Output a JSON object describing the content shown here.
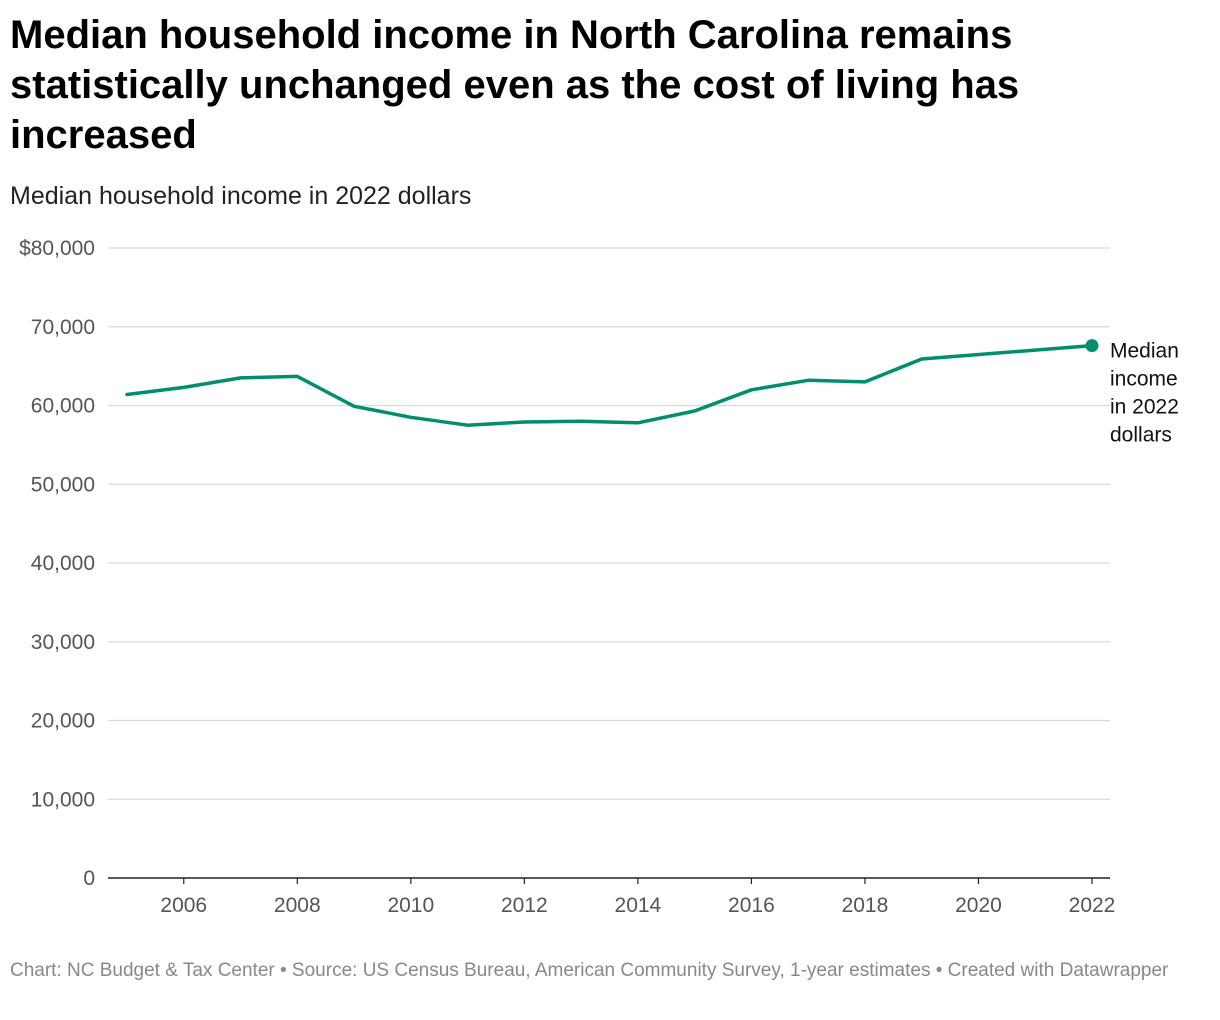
{
  "chart_data": {
    "type": "line",
    "title": "Median household income in North Carolina remains statistically unchanged even as the cost of living has increased",
    "subtitle": "Median household income in 2022 dollars",
    "xlabel": "",
    "ylabel": "",
    "x": [
      2005,
      2006,
      2007,
      2008,
      2009,
      2010,
      2011,
      2012,
      2013,
      2014,
      2015,
      2016,
      2017,
      2018,
      2019,
      2020,
      2021,
      2022
    ],
    "series": [
      {
        "name": "Median income in 2022 dollars",
        "color": "#008f6c",
        "values": [
          61400,
          62300,
          63500,
          63700,
          59900,
          58500,
          57500,
          57900,
          58000,
          57800,
          59300,
          62000,
          63200,
          63000,
          65900,
          null,
          null,
          67600
        ]
      }
    ],
    "xlim": [
      2005,
      2022
    ],
    "ylim": [
      0,
      80000
    ],
    "y_ticks": [
      0,
      10000,
      20000,
      30000,
      40000,
      50000,
      60000,
      70000,
      80000
    ],
    "y_tick_labels": [
      "0",
      "10,000",
      "20,000",
      "30,000",
      "40,000",
      "50,000",
      "60,000",
      "70,000",
      "$80,000"
    ],
    "x_ticks": [
      2006,
      2008,
      2010,
      2012,
      2014,
      2016,
      2018,
      2020,
      2022
    ],
    "x_tick_labels": [
      "2006",
      "2008",
      "2010",
      "2012",
      "2014",
      "2016",
      "2018",
      "2020",
      "2022"
    ],
    "series_label_lines": [
      "Median",
      "income",
      "in 2022",
      "dollars"
    ],
    "grid": true,
    "legend": "inline-right"
  },
  "footer": {
    "text": "Chart: NC Budget & Tax Center • Source: US Census Bureau, American Community Survey, 1-year estimates • Created with Datawrapper"
  }
}
